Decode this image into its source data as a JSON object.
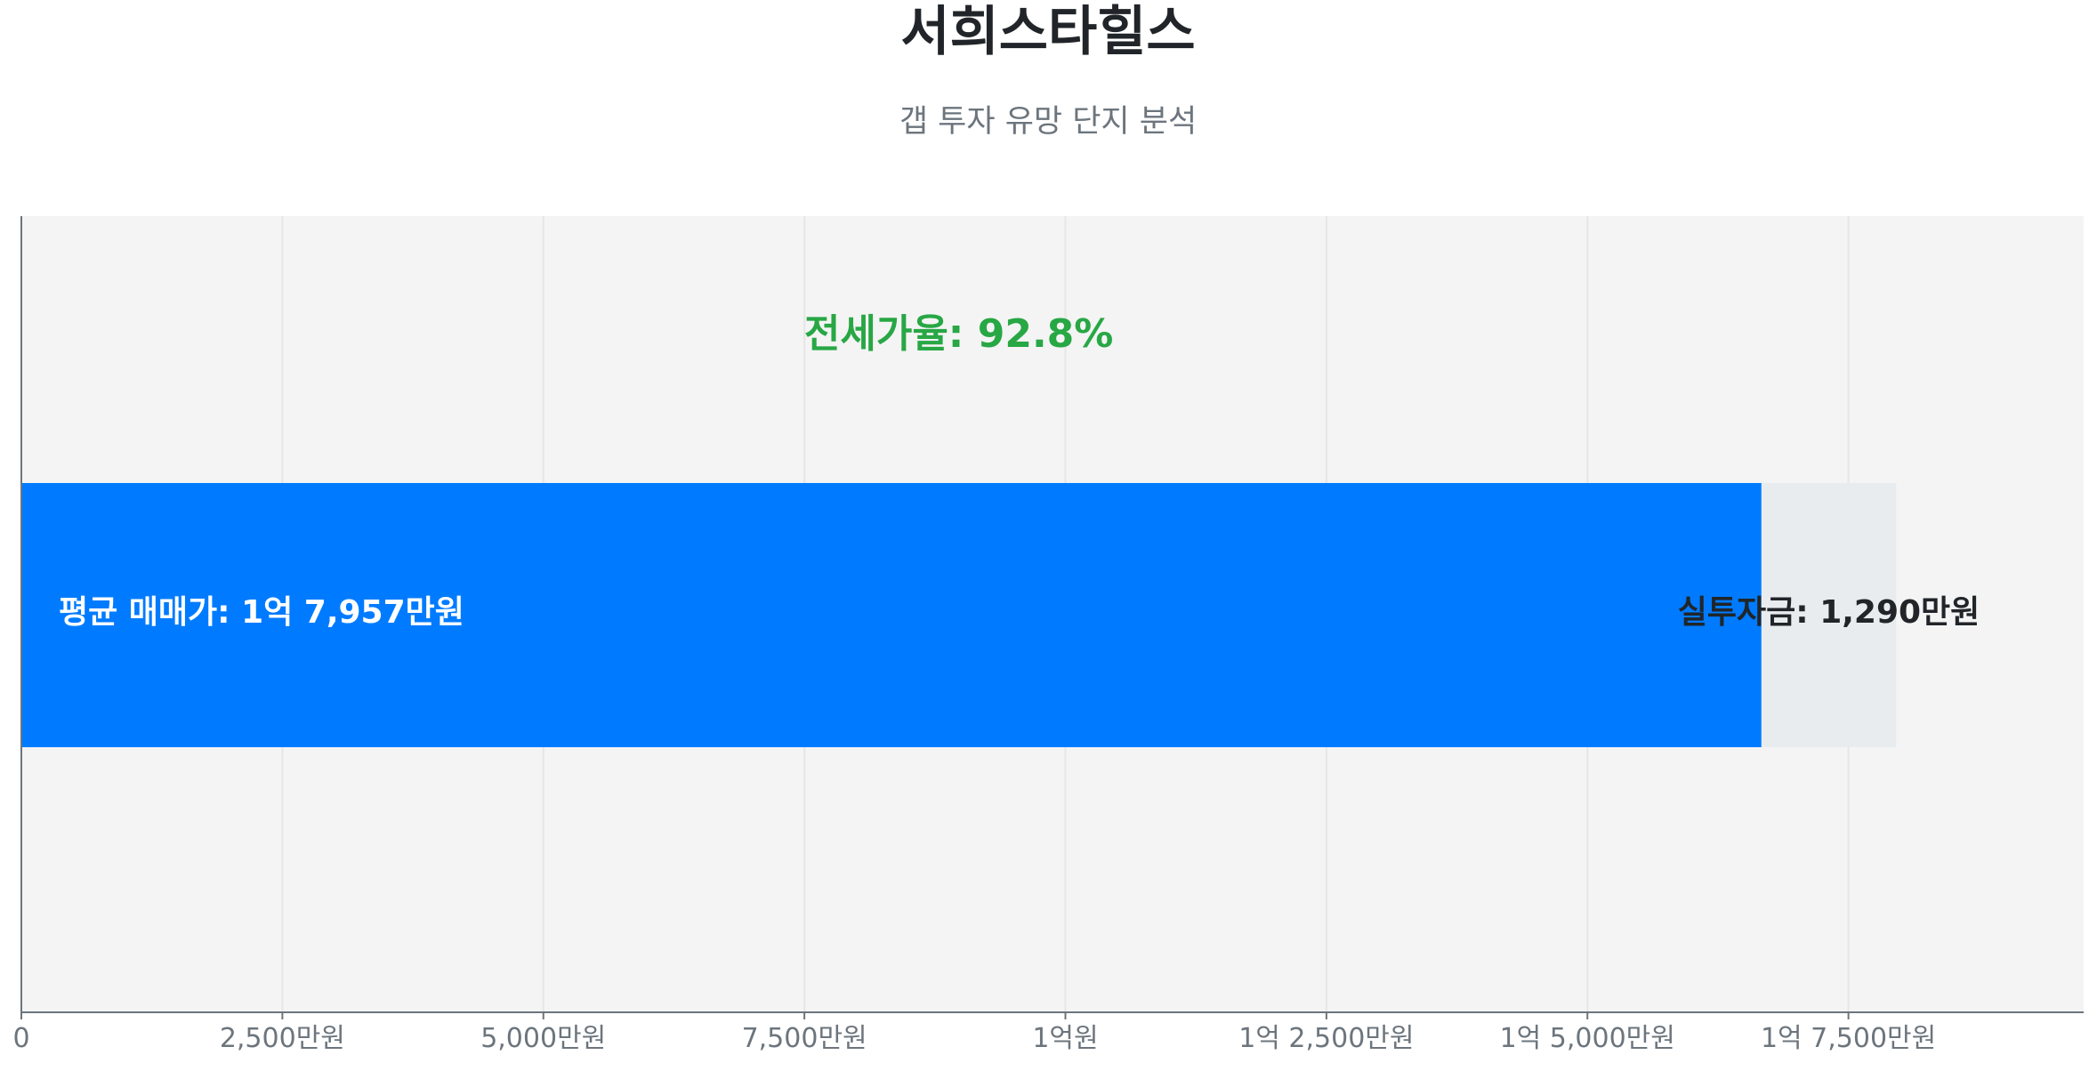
{
  "chart_data": {
    "type": "bar",
    "orientation": "horizontal",
    "stacked": true,
    "title": "서희스타힐스",
    "subtitle": "갭 투자 유망 단지 분석",
    "xlim": [
      0,
      19753
    ],
    "unit": "만원",
    "grid": true,
    "ticks": [
      {
        "value": 0,
        "label": "0"
      },
      {
        "value": 2500,
        "label": "2,500만원"
      },
      {
        "value": 5000,
        "label": "5,000만원"
      },
      {
        "value": 7500,
        "label": "7,500만원"
      },
      {
        "value": 10000,
        "label": "1억원"
      },
      {
        "value": 12500,
        "label": "1억 2,500만원"
      },
      {
        "value": 15000,
        "label": "1억 5,000만원"
      },
      {
        "value": 17500,
        "label": "1억 7,500만원"
      }
    ],
    "segments": [
      {
        "value": 16667,
        "color": "#007bff"
      },
      {
        "value": 1290,
        "color": "#e9ecef"
      }
    ],
    "avg_price": 17957,
    "jeonse_ratio_pct": 92.8,
    "labels": {
      "avg_price": "평균 매매가: 1억 7,957만원",
      "investment": "실투자금: 1,290만원",
      "jeonse_ratio": "전세가율: 92.8%"
    },
    "colors": {
      "plot_bg": "#f4f4f4",
      "ratio_label": "#28a745",
      "title": "#212529",
      "subtitle": "#6c757d",
      "tick": "#6c757d"
    }
  }
}
